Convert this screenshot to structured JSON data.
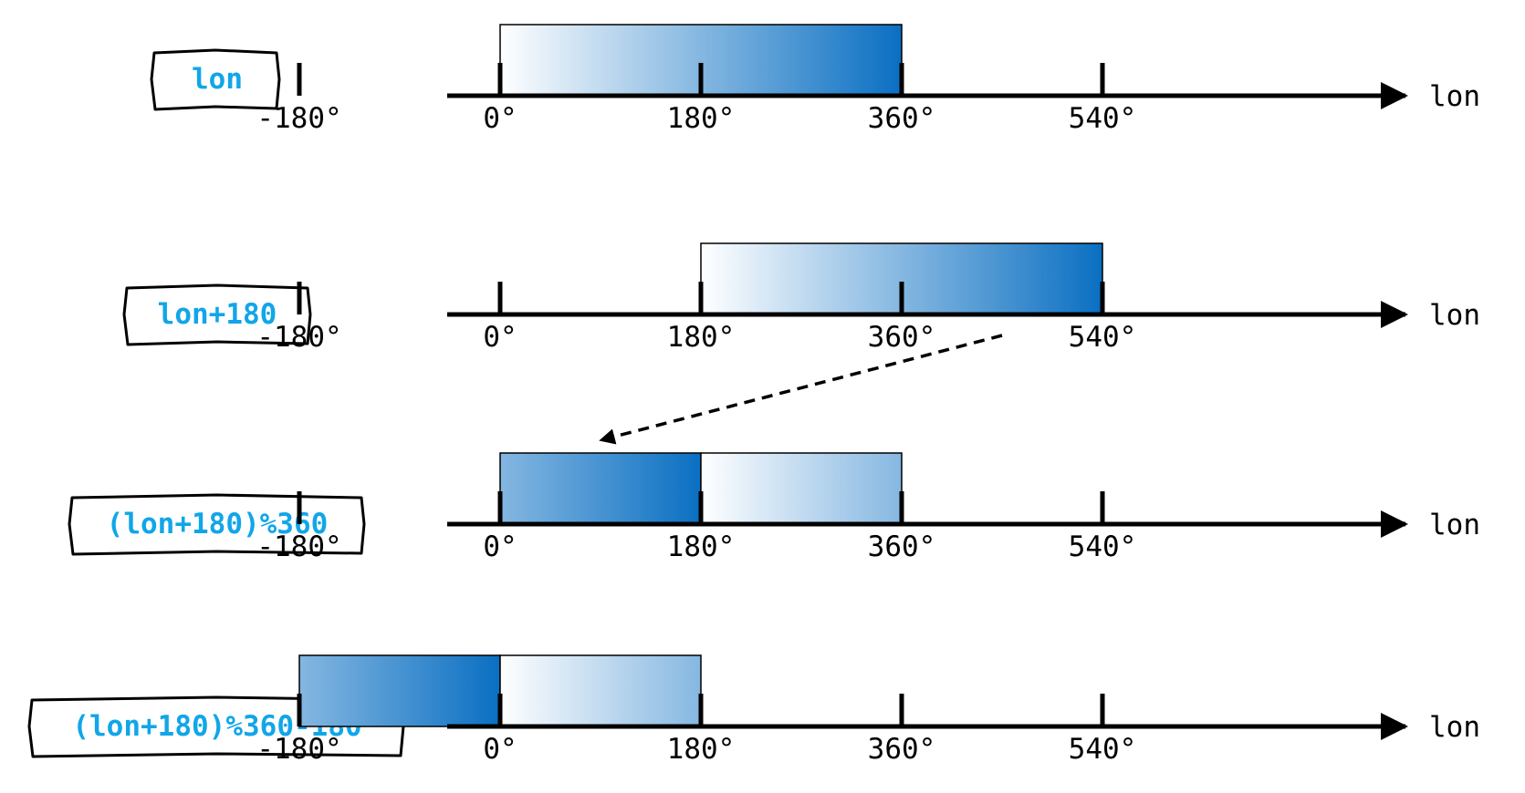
{
  "colors": {
    "formula_text": "#11a6e8",
    "band_dark": "#0a6fc2",
    "band_light": "#ffffff",
    "axis": "#000000"
  },
  "chart_data": {
    "type": "diagram",
    "axis_name": "lon",
    "ticks": [
      -180,
      0,
      180,
      360,
      540
    ],
    "tick_labels": [
      "-180°",
      "0°",
      "180°",
      "360°",
      "540°"
    ],
    "rows": [
      {
        "formula": "lon",
        "bands": [
          {
            "from": 0,
            "to": 360,
            "gradient_start": 0,
            "gradient_end": 1
          }
        ]
      },
      {
        "formula": "lon+180",
        "bands": [
          {
            "from": 180,
            "to": 540,
            "gradient_start": 0,
            "gradient_end": 1
          }
        ]
      },
      {
        "formula": "(lon+180)%360",
        "bands": [
          {
            "from": 0,
            "to": 180,
            "gradient_start": 0.5,
            "gradient_end": 1
          },
          {
            "from": 180,
            "to": 360,
            "gradient_start": 0,
            "gradient_end": 0.5
          }
        ]
      },
      {
        "formula": "(lon+180)%360-180",
        "bands": [
          {
            "from": -180,
            "to": 0,
            "gradient_start": 0.5,
            "gradient_end": 1
          },
          {
            "from": 0,
            "to": 180,
            "gradient_start": 0,
            "gradient_end": 0.5
          }
        ]
      }
    ],
    "arrows": [
      {
        "from_row": 1,
        "from_value": 450,
        "to_row": 2,
        "to_value": 90,
        "style": "dashed"
      }
    ]
  }
}
